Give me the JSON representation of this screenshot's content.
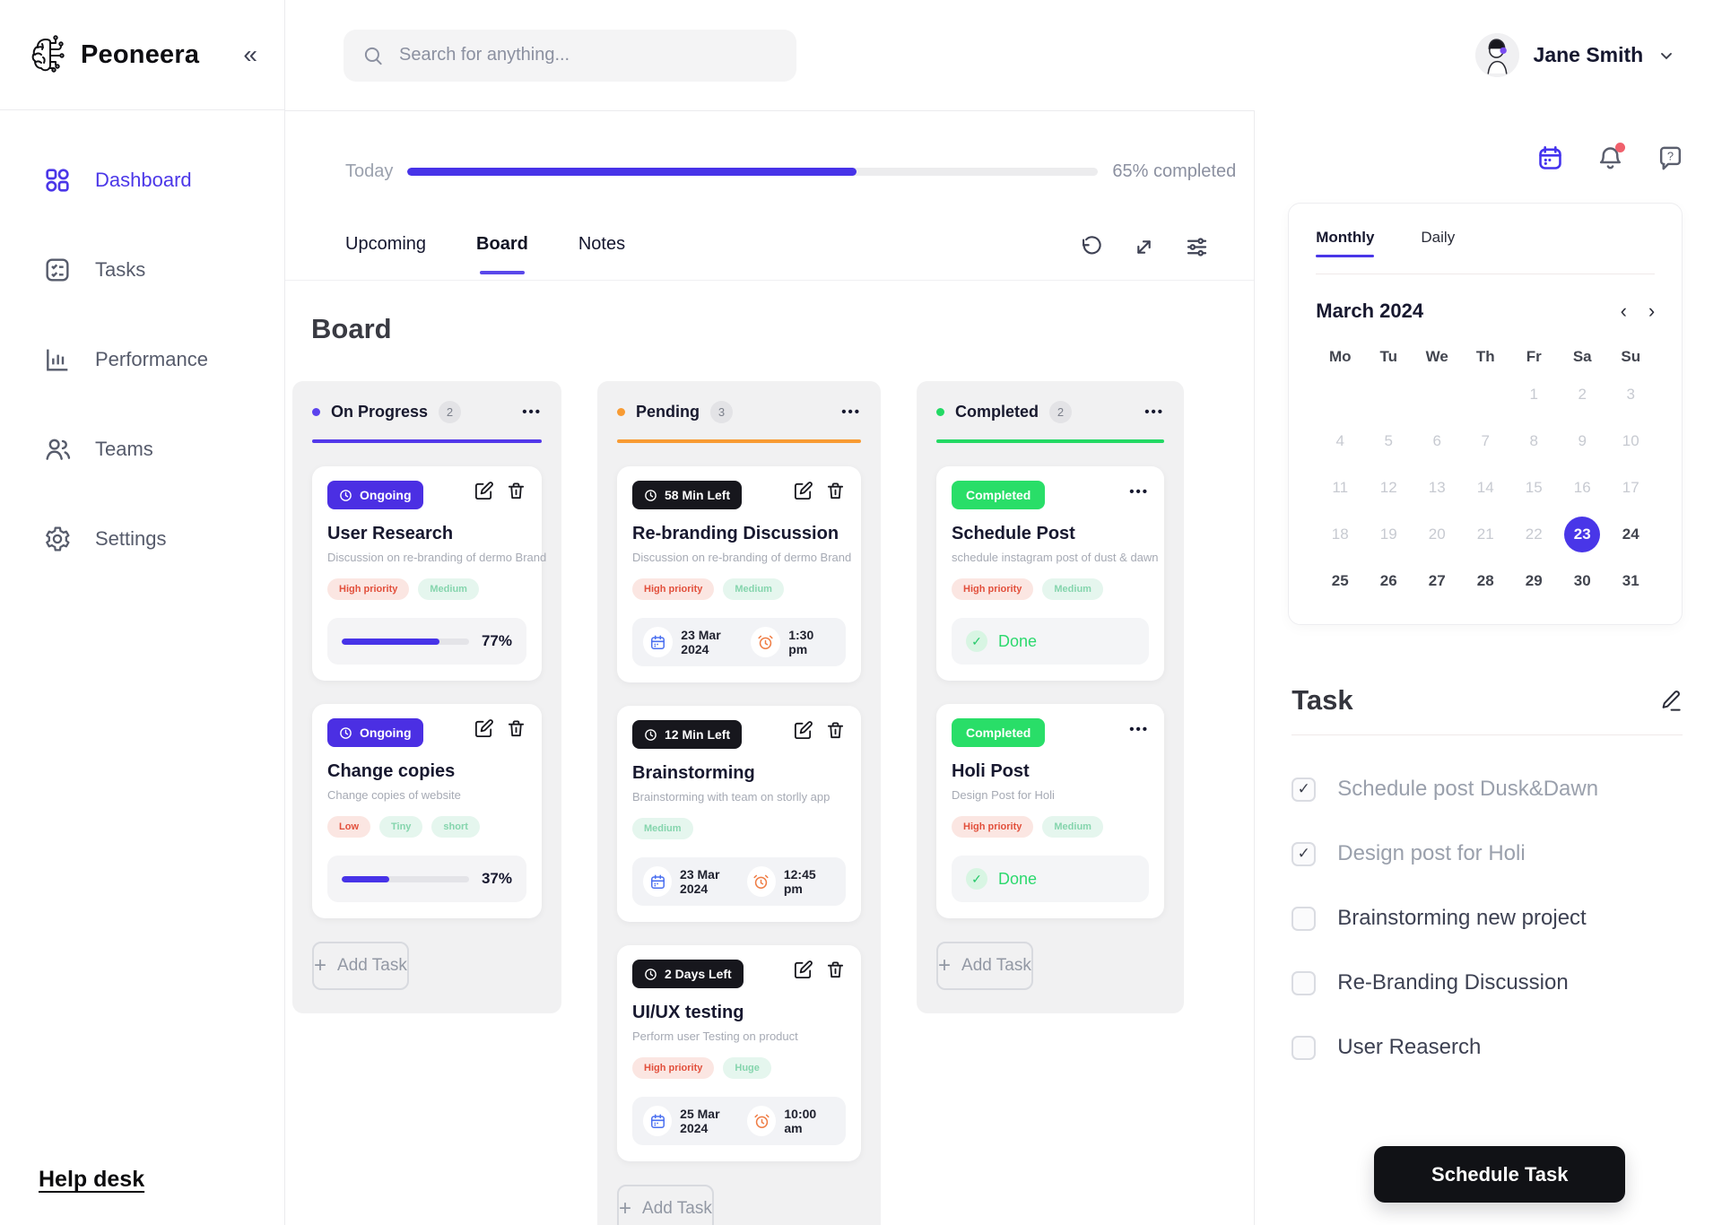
{
  "brand": {
    "name": "Peoneera"
  },
  "glyphs": {
    "collapse": "«",
    "plus": "+",
    "dots": "•••",
    "prev": "‹",
    "next": "›",
    "check": "✓",
    "question": "?"
  },
  "colors": {
    "accent_indigo": "#4B34E4",
    "accent_orange": "#F89B33",
    "accent_green": "#23D964",
    "tag_red_text": "#E2503C",
    "tag_green_text": "#85D5AD",
    "notification_dot": "#F0606C",
    "schedule_button_bg": "#111216"
  },
  "topbar": {
    "search_placeholder": "Search for anything...",
    "user_name": "Jane Smith"
  },
  "sidebar": {
    "items": [
      {
        "label": "Dashboard"
      },
      {
        "label": "Tasks"
      },
      {
        "label": "Performance"
      },
      {
        "label": "Teams"
      },
      {
        "label": "Settings"
      }
    ],
    "help_link": "Help desk"
  },
  "overview": {
    "day_label": "Today",
    "percent_complete": 65,
    "status_text": "65% completed"
  },
  "view_tabs": [
    {
      "label": "Upcoming"
    },
    {
      "label": "Board"
    },
    {
      "label": "Notes"
    }
  ],
  "board": {
    "title": "Board",
    "add_task_label": "Add Task",
    "columns": [
      {
        "name": "On Progress",
        "count": "2",
        "cards": [
          {
            "badge": "Ongoing",
            "title": "User Research",
            "description": "Discussion on re-branding of dermo Brand",
            "tags": [
              {
                "label": "High priority"
              },
              {
                "label": "Medium"
              }
            ],
            "progress_percent": 77,
            "progress_label": "77%"
          },
          {
            "badge": "Ongoing",
            "title": "Change copies",
            "description": "Change copies of website",
            "tags": [
              {
                "label": "Low"
              },
              {
                "label": "Tiny"
              },
              {
                "label": "short"
              }
            ],
            "progress_percent": 37,
            "progress_label": "37%"
          }
        ]
      },
      {
        "name": "Pending",
        "count": "3",
        "cards": [
          {
            "badge": "58 Min Left",
            "title": "Re-branding Discussion",
            "description": "Discussion on re-branding of dermo Brand",
            "tags": [
              {
                "label": "High priority"
              },
              {
                "label": "Medium"
              }
            ],
            "date": "23 Mar 2024",
            "time": "1:30 pm"
          },
          {
            "badge": "12 Min Left",
            "title": "Brainstorming",
            "description": "Brainstorming with team on storlly app",
            "tags": [
              {
                "label": "Medium"
              }
            ],
            "date": "23 Mar 2024",
            "time": "12:45 pm"
          },
          {
            "badge": "2 Days Left",
            "title": "UI/UX testing",
            "description": "Perform user Testing on product",
            "tags": [
              {
                "label": "High priority"
              },
              {
                "label": "Huge"
              }
            ],
            "date": "25 Mar 2024",
            "time": "10:00 am"
          }
        ]
      },
      {
        "name": "Completed",
        "count": "2",
        "cards": [
          {
            "badge": "Completed",
            "title": "Schedule Post",
            "description": "schedule instagram post of dust & dawn",
            "tags": [
              {
                "label": "High priority"
              },
              {
                "label": "Medium"
              }
            ],
            "done_label": "Done"
          },
          {
            "badge": "Completed",
            "title": "Holi Post",
            "description": "Design Post for Holi",
            "tags": [
              {
                "label": "High priority"
              },
              {
                "label": "Medium"
              }
            ],
            "done_label": "Done"
          }
        ]
      }
    ]
  },
  "calendar": {
    "tabs": [
      {
        "label": "Monthly"
      },
      {
        "label": "Daily"
      }
    ],
    "month_label": "March 2024",
    "weekdays": [
      "Mo",
      "Tu",
      "We",
      "Th",
      "Fr",
      "Sa",
      "Su"
    ],
    "days": [
      "",
      "",
      "",
      "",
      1,
      2,
      3,
      4,
      5,
      6,
      7,
      8,
      9,
      10,
      11,
      12,
      13,
      14,
      15,
      16,
      17,
      18,
      19,
      20,
      21,
      22,
      23,
      24,
      25,
      26,
      27,
      28,
      29,
      30,
      31
    ],
    "selected_day": 23,
    "muted_through": 22
  },
  "tasks": {
    "title": "Task",
    "items": [
      {
        "label": "Schedule post Dusk&Dawn",
        "checked": true
      },
      {
        "label": "Design post for Holi",
        "checked": true
      },
      {
        "label": "Brainstorming new project",
        "checked": false
      },
      {
        "label": "Re-Branding Discussion",
        "checked": false
      },
      {
        "label": "User Reaserch",
        "checked": false
      }
    ],
    "schedule_button": "Schedule Task"
  }
}
